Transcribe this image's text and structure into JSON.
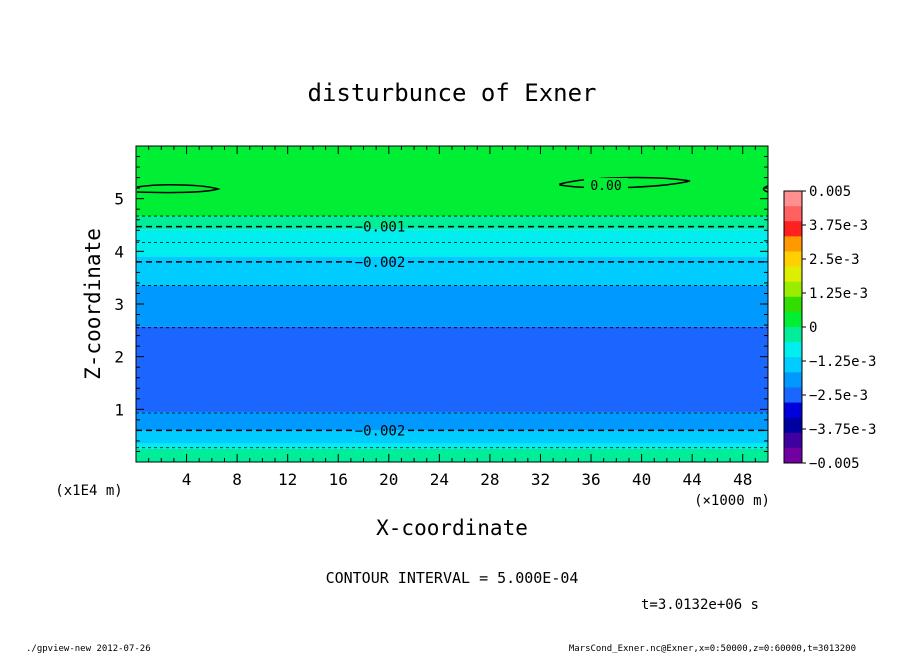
{
  "chart_data": {
    "type": "heatmap",
    "title": "disturbunce of Exner",
    "xlabel": "X-coordinate",
    "ylabel": "Z-coordinate",
    "x_unit": "(×1000 m)",
    "y_unit": "(x1E4 m)",
    "xlim": [
      0,
      50
    ],
    "ylim": [
      0,
      6
    ],
    "x_ticks": [
      "4",
      "8",
      "12",
      "16",
      "20",
      "24",
      "28",
      "32",
      "36",
      "40",
      "44",
      "48"
    ],
    "y_ticks": [
      "1",
      "2",
      "3",
      "4",
      "5"
    ],
    "colorbar": {
      "labels": [
        "0.005",
        "3.75e-3",
        "2.5e-3",
        "1.25e-3",
        "0",
        "−1.25e-3",
        "−2.5e-3",
        "−3.75e-3",
        "−0.005"
      ],
      "colors": [
        "#ff9090",
        "#ff6060",
        "#ff2020",
        "#ff9900",
        "#ffd000",
        "#ddee00",
        "#99ee00",
        "#33dd00",
        "#00ee33",
        "#00ee99",
        "#00eeee",
        "#00ccff",
        "#0099ff",
        "#1a66ff",
        "#0000dd",
        "#0000a0",
        "#4000a0",
        "#7000a0"
      ]
    },
    "bands": [
      {
        "z_top": 6.0,
        "z_bottom": 4.67,
        "color": "#00ee33"
      },
      {
        "z_top": 4.67,
        "z_bottom": 4.42,
        "color": "#00ee99"
      },
      {
        "z_top": 4.42,
        "z_bottom": 3.9,
        "color": "#00eeee"
      },
      {
        "z_top": 3.9,
        "z_bottom": 3.35,
        "color": "#00ccff"
      },
      {
        "z_top": 3.35,
        "z_bottom": 2.57,
        "color": "#0099ff"
      },
      {
        "z_top": 2.57,
        "z_bottom": 0.95,
        "color": "#1a66ff"
      },
      {
        "z_top": 0.95,
        "z_bottom": 0.6,
        "color": "#0099ff"
      },
      {
        "z_top": 0.6,
        "z_bottom": 0.35,
        "color": "#00ccff"
      },
      {
        "z_top": 0.35,
        "z_bottom": 0.25,
        "color": "#00eeee"
      },
      {
        "z_top": 0.25,
        "z_bottom": 0.0,
        "color": "#00ee99"
      }
    ],
    "contours": [
      {
        "z": 4.67,
        "style": "thin-dashed"
      },
      {
        "z": 4.47,
        "style": "dashed",
        "label": "−0.001"
      },
      {
        "z": 4.17,
        "style": "thin-dashed"
      },
      {
        "z": 3.8,
        "style": "dashed",
        "label": "−0.002"
      },
      {
        "z": 3.35,
        "style": "thin-dashed"
      },
      {
        "z": 2.55,
        "style": "thin-dashed"
      },
      {
        "z": 0.93,
        "style": "thin-dashed"
      },
      {
        "z": 0.6,
        "style": "dashed",
        "label": "−0.002"
      },
      {
        "z": 0.27,
        "style": "thin-dashed"
      }
    ],
    "zero_contour_label": "0.00",
    "grid": false,
    "legend": "right colorbar"
  },
  "footer": {
    "contour_interval": "CONTOUR INTERVAL = 5.000E-04",
    "time": "t=3.0132e+06 s",
    "program": "./gpview-new  2012-07-26",
    "source": "MarsCond_Exner.nc@Exner,x=0:50000,z=0:60000,t=3013200"
  }
}
